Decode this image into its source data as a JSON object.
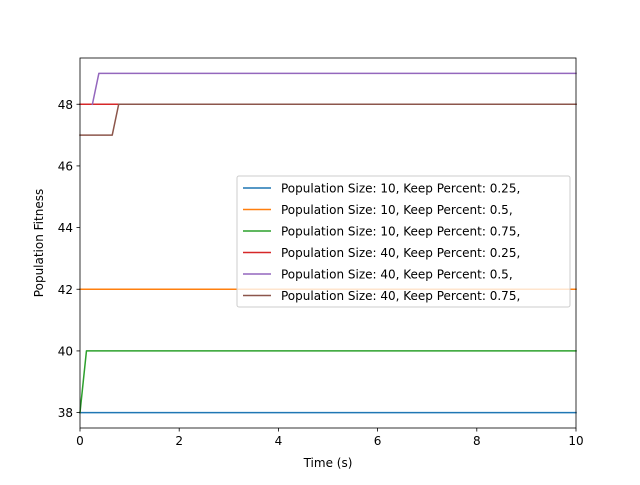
{
  "chart_data": {
    "type": "line",
    "title": "",
    "xlabel": "Time (s)",
    "ylabel": "Population Fitness",
    "xlim": [
      0,
      10
    ],
    "ylim": [
      37.5,
      49.5
    ],
    "xticks": [
      0,
      2,
      4,
      6,
      8,
      10
    ],
    "yticks": [
      38,
      40,
      42,
      44,
      46,
      48
    ],
    "xtick_labels": [
      "0",
      "2",
      "4",
      "6",
      "8",
      "10"
    ],
    "ytick_labels": [
      "38",
      "40",
      "42",
      "44",
      "46",
      "48"
    ],
    "grid": false,
    "legend_position": "center-right",
    "series": [
      {
        "name": "Population Size: 10, Keep Percent: 0.25,",
        "color": "#1f77b4",
        "points": [
          [
            0,
            38
          ],
          [
            10,
            38
          ]
        ]
      },
      {
        "name": "Population Size: 10, Keep Percent: 0.5,",
        "color": "#ff7f0e",
        "points": [
          [
            0,
            42
          ],
          [
            10,
            42
          ]
        ]
      },
      {
        "name": "Population Size: 10, Keep Percent: 0.75,",
        "color": "#2ca02c",
        "points": [
          [
            0,
            38
          ],
          [
            0.13,
            40
          ],
          [
            10,
            40
          ]
        ]
      },
      {
        "name": "Population Size: 40, Keep Percent: 0.25,",
        "color": "#d62728",
        "points": [
          [
            0,
            48
          ],
          [
            10,
            48
          ]
        ]
      },
      {
        "name": "Population Size: 40, Keep Percent: 0.5,",
        "color": "#9467bd",
        "points": [
          [
            0.25,
            48
          ],
          [
            0.38,
            49
          ],
          [
            10,
            49
          ]
        ]
      },
      {
        "name": "Population Size: 40, Keep Percent: 0.75,",
        "color": "#8c564b",
        "points": [
          [
            0,
            47
          ],
          [
            0.65,
            47
          ],
          [
            0.78,
            48
          ],
          [
            10,
            48
          ]
        ]
      }
    ]
  }
}
